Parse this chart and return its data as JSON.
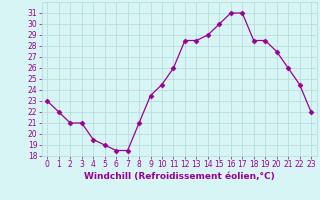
{
  "x": [
    0,
    1,
    2,
    3,
    4,
    5,
    6,
    7,
    8,
    9,
    10,
    11,
    12,
    13,
    14,
    15,
    16,
    17,
    18,
    19,
    20,
    21,
    22,
    23
  ],
  "y": [
    23,
    22,
    21,
    21,
    19.5,
    19,
    18.5,
    18.5,
    21,
    23.5,
    24.5,
    26,
    28.5,
    28.5,
    29,
    30,
    31,
    31,
    28.5,
    28.5,
    27.5,
    26,
    24.5,
    22
  ],
  "line_color": "#990099",
  "marker": "D",
  "marker_size": 2.5,
  "bg_color": "#d8f5f5",
  "grid_color": "#b8dede",
  "xlabel": "Windchill (Refroidissement éolien,°C)",
  "xlabel_color": "#990099",
  "tick_color": "#990099",
  "xlim": [
    -0.5,
    23.5
  ],
  "ylim": [
    18,
    32
  ],
  "yticks": [
    18,
    19,
    20,
    21,
    22,
    23,
    24,
    25,
    26,
    27,
    28,
    29,
    30,
    31
  ],
  "xticks": [
    0,
    1,
    2,
    3,
    4,
    5,
    6,
    7,
    8,
    9,
    10,
    11,
    12,
    13,
    14,
    15,
    16,
    17,
    18,
    19,
    20,
    21,
    22,
    23
  ],
  "tick_fontsize": 5.5,
  "xlabel_fontsize": 6.5,
  "linewidth": 0.9
}
